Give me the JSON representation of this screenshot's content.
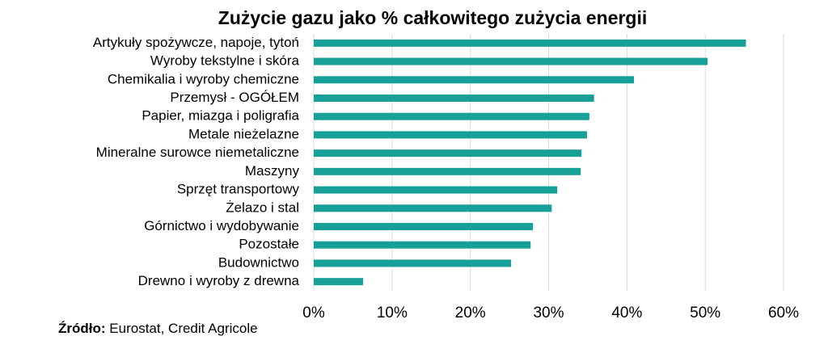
{
  "chart_data": {
    "type": "barh",
    "title": "Zużycie gazu jako % całkowitego zużycia energii",
    "categories": [
      "Artykuły spożywcze, napoje, tytoń",
      "Wyroby tekstylne i skóra",
      "Chemikalia i wyroby chemiczne",
      "Przemysł - OGÓŁEM",
      "Papier, miazga i poligrafia",
      "Metale nieżelazne",
      "Mineralne surowce niemetaliczne",
      "Maszyny",
      "Sprzęt transportowy",
      "Żelazo i stal",
      "Górnictwo i wydobywanie",
      "Pozostałe",
      "Budownictwo",
      "Drewno i wyroby z drewna"
    ],
    "values": [
      55.2,
      50.3,
      40.9,
      35.8,
      35.2,
      34.9,
      34.2,
      34.1,
      31.1,
      30.4,
      28.0,
      27.7,
      25.2,
      6.3
    ],
    "color": "#17a097",
    "xlim": [
      0,
      60
    ],
    "xticks": [
      {
        "value": 0,
        "label": "0%"
      },
      {
        "value": 10,
        "label": "10%"
      },
      {
        "value": 20,
        "label": "20%"
      },
      {
        "value": 30,
        "label": "30%"
      },
      {
        "value": 40,
        "label": "40%"
      },
      {
        "value": 50,
        "label": "50%"
      },
      {
        "value": 60,
        "label": "60%"
      }
    ],
    "grid": true
  },
  "source": {
    "label": "Źródło:",
    "text": "Eurostat, Credit Agricole"
  }
}
